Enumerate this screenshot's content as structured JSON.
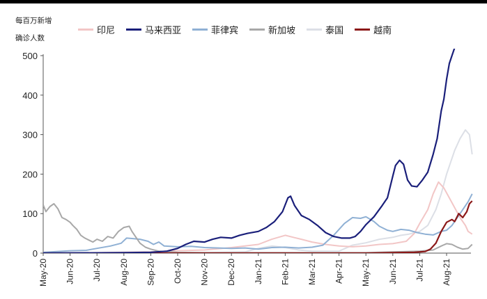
{
  "chart_data": {
    "type": "line",
    "ylabel_line1": "每百万新增",
    "ylabel_line2": "确诊人数",
    "ylim": [
      0,
      500
    ],
    "yticks": [
      0,
      100,
      200,
      300,
      400,
      500
    ],
    "x_tick_labels": [
      "May-20",
      "Jun-20",
      "Jul-20",
      "Aug-20",
      "Sep-20",
      "Oct-20",
      "Nov-20",
      "Dec-20",
      "Jan-21",
      "Feb-21",
      "Mar-21",
      "Apr-21",
      "May-21",
      "Jun-21",
      "Jul-21",
      "Aug-21"
    ],
    "legend_position": "top",
    "grid": false,
    "series": [
      {
        "name": "印尼",
        "color": "#f2c6c6",
        "points": [
          [
            0,
            0
          ],
          [
            2,
            1
          ],
          [
            4,
            3
          ],
          [
            5,
            6
          ],
          [
            6,
            8
          ],
          [
            7,
            14
          ],
          [
            8,
            22
          ],
          [
            8.5,
            35
          ],
          [
            9,
            45
          ],
          [
            9.3,
            40
          ],
          [
            9.6,
            35
          ],
          [
            10,
            28
          ],
          [
            10.5,
            22
          ],
          [
            11,
            18
          ],
          [
            11.5,
            16
          ],
          [
            12,
            18
          ],
          [
            12.5,
            22
          ],
          [
            13,
            24
          ],
          [
            13.5,
            30
          ],
          [
            13.8,
            50
          ],
          [
            14,
            75
          ],
          [
            14.3,
            110
          ],
          [
            14.5,
            150
          ],
          [
            14.7,
            180
          ],
          [
            14.9,
            165
          ],
          [
            15.1,
            140
          ],
          [
            15.3,
            115
          ],
          [
            15.5,
            90
          ],
          [
            15.7,
            70
          ],
          [
            15.8,
            55
          ],
          [
            15.95,
            48
          ]
        ]
      },
      {
        "name": "马来西亚",
        "color": "#1a1f7a",
        "points": [
          [
            0,
            0
          ],
          [
            3,
            1
          ],
          [
            4,
            2
          ],
          [
            4.6,
            5
          ],
          [
            5,
            12
          ],
          [
            5.3,
            22
          ],
          [
            5.6,
            30
          ],
          [
            6,
            28
          ],
          [
            6.3,
            35
          ],
          [
            6.6,
            40
          ],
          [
            7,
            38
          ],
          [
            7.3,
            45
          ],
          [
            7.6,
            50
          ],
          [
            8,
            55
          ],
          [
            8.3,
            65
          ],
          [
            8.6,
            80
          ],
          [
            8.9,
            105
          ],
          [
            9.1,
            140
          ],
          [
            9.2,
            144
          ],
          [
            9.35,
            120
          ],
          [
            9.6,
            95
          ],
          [
            9.9,
            85
          ],
          [
            10.2,
            70
          ],
          [
            10.5,
            52
          ],
          [
            10.8,
            42
          ],
          [
            11.1,
            38
          ],
          [
            11.4,
            38
          ],
          [
            11.6,
            42
          ],
          [
            11.8,
            55
          ],
          [
            12,
            72
          ],
          [
            12.3,
            92
          ],
          [
            12.6,
            120
          ],
          [
            12.8,
            140
          ],
          [
            13,
            195
          ],
          [
            13.1,
            222
          ],
          [
            13.25,
            235
          ],
          [
            13.4,
            225
          ],
          [
            13.55,
            185
          ],
          [
            13.7,
            170
          ],
          [
            13.9,
            168
          ],
          [
            14.1,
            185
          ],
          [
            14.3,
            205
          ],
          [
            14.5,
            250
          ],
          [
            14.65,
            290
          ],
          [
            14.8,
            360
          ],
          [
            14.9,
            390
          ],
          [
            15,
            440
          ],
          [
            15.1,
            480
          ],
          [
            15.2,
            500
          ],
          [
            15.3,
            520
          ]
        ]
      },
      {
        "name": "菲律宾",
        "color": "#8fb0d4",
        "points": [
          [
            0,
            2
          ],
          [
            1,
            6
          ],
          [
            1.6,
            7
          ],
          [
            2,
            12
          ],
          [
            2.5,
            18
          ],
          [
            2.9,
            25
          ],
          [
            3.1,
            38
          ],
          [
            3.3,
            37
          ],
          [
            3.6,
            35
          ],
          [
            3.9,
            30
          ],
          [
            4.1,
            22
          ],
          [
            4.3,
            28
          ],
          [
            4.5,
            18
          ],
          [
            5,
            16
          ],
          [
            5.5,
            17
          ],
          [
            6,
            14
          ],
          [
            6.5,
            13
          ],
          [
            7,
            12
          ],
          [
            7.5,
            13
          ],
          [
            8,
            10
          ],
          [
            8.5,
            14
          ],
          [
            9,
            15
          ],
          [
            9.5,
            13
          ],
          [
            10,
            15
          ],
          [
            10.4,
            20
          ],
          [
            10.8,
            45
          ],
          [
            11.2,
            75
          ],
          [
            11.5,
            90
          ],
          [
            11.8,
            88
          ],
          [
            12,
            92
          ],
          [
            12.3,
            80
          ],
          [
            12.5,
            68
          ],
          [
            12.8,
            58
          ],
          [
            13,
            55
          ],
          [
            13.3,
            60
          ],
          [
            13.6,
            58
          ],
          [
            13.9,
            52
          ],
          [
            14.2,
            48
          ],
          [
            14.5,
            46
          ],
          [
            14.8,
            55
          ],
          [
            15,
            58
          ],
          [
            15.2,
            70
          ],
          [
            15.5,
            100
          ],
          [
            15.8,
            130
          ],
          [
            15.95,
            150
          ]
        ]
      },
      {
        "name": "新加坡",
        "color": "#a8a8a8",
        "points": [
          [
            0,
            122
          ],
          [
            0.1,
            105
          ],
          [
            0.25,
            118
          ],
          [
            0.4,
            125
          ],
          [
            0.55,
            112
          ],
          [
            0.7,
            90
          ],
          [
            0.85,
            85
          ],
          [
            1,
            78
          ],
          [
            1.1,
            70
          ],
          [
            1.25,
            60
          ],
          [
            1.4,
            45
          ],
          [
            1.55,
            38
          ],
          [
            1.7,
            33
          ],
          [
            1.85,
            28
          ],
          [
            2,
            35
          ],
          [
            2.2,
            30
          ],
          [
            2.4,
            42
          ],
          [
            2.6,
            38
          ],
          [
            2.8,
            55
          ],
          [
            3,
            65
          ],
          [
            3.2,
            68
          ],
          [
            3.3,
            55
          ],
          [
            3.45,
            40
          ],
          [
            3.6,
            25
          ],
          [
            3.8,
            15
          ],
          [
            4,
            10
          ],
          [
            4.3,
            5
          ],
          [
            5,
            2
          ],
          [
            6,
            1
          ],
          [
            8,
            1
          ],
          [
            10,
            1
          ],
          [
            12,
            1
          ],
          [
            13,
            3
          ],
          [
            14,
            5
          ],
          [
            14.5,
            8
          ],
          [
            14.8,
            18
          ],
          [
            15,
            24
          ],
          [
            15.2,
            22
          ],
          [
            15.4,
            15
          ],
          [
            15.6,
            10
          ],
          [
            15.8,
            12
          ],
          [
            15.95,
            22
          ]
        ]
      },
      {
        "name": "泰国",
        "color": "#dcdfe6",
        "points": [
          [
            0,
            0
          ],
          [
            4,
            1
          ],
          [
            6,
            1
          ],
          [
            7.5,
            3
          ],
          [
            8,
            12
          ],
          [
            8.5,
            18
          ],
          [
            9,
            14
          ],
          [
            9.5,
            8
          ],
          [
            10,
            5
          ],
          [
            11,
            5
          ],
          [
            11.5,
            20
          ],
          [
            12,
            26
          ],
          [
            12.5,
            35
          ],
          [
            13,
            40
          ],
          [
            13.3,
            45
          ],
          [
            13.6,
            48
          ],
          [
            14,
            55
          ],
          [
            14.3,
            70
          ],
          [
            14.6,
            110
          ],
          [
            14.8,
            150
          ],
          [
            15,
            200
          ],
          [
            15.3,
            260
          ],
          [
            15.5,
            290
          ],
          [
            15.7,
            312
          ],
          [
            15.85,
            300
          ],
          [
            15.95,
            250
          ]
        ]
      },
      {
        "name": "越南",
        "color": "#8b1818",
        "points": [
          [
            0,
            0
          ],
          [
            6,
            0
          ],
          [
            10,
            0
          ],
          [
            12,
            0
          ],
          [
            13,
            1
          ],
          [
            13.8,
            2
          ],
          [
            14.2,
            4
          ],
          [
            14.4,
            10
          ],
          [
            14.6,
            25
          ],
          [
            14.8,
            55
          ],
          [
            15,
            78
          ],
          [
            15.2,
            85
          ],
          [
            15.3,
            80
          ],
          [
            15.45,
            100
          ],
          [
            15.6,
            90
          ],
          [
            15.75,
            105
          ],
          [
            15.85,
            125
          ],
          [
            15.95,
            132
          ]
        ]
      }
    ]
  }
}
